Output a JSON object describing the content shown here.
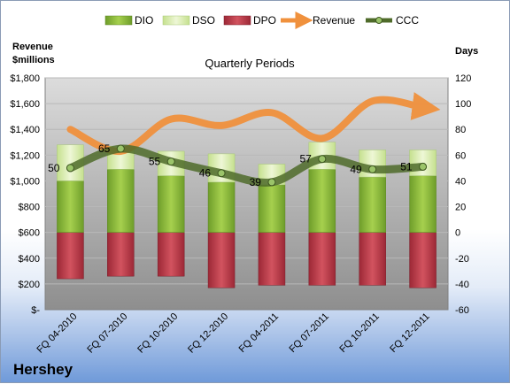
{
  "company": "Hershey",
  "chart_data": {
    "type": "bar",
    "title": "Quarterly Periods",
    "y_left_label_line1": "Revenue",
    "y_left_label_line2": "$millions",
    "y_right_label": "Days",
    "y_left_range": [
      0,
      1800
    ],
    "y_left_ticks": [
      "$-",
      "$200",
      "$400",
      "$600",
      "$800",
      "$1,000",
      "$1,200",
      "$1,400",
      "$1,600",
      "$1,800"
    ],
    "y_right_range": [
      -60,
      120
    ],
    "y_right_ticks": [
      "-60",
      "-40",
      "-20",
      "0",
      "20",
      "40",
      "60",
      "80",
      "100",
      "120"
    ],
    "categories": [
      "FQ 04-2010",
      "FQ 07-2010",
      "FQ 10-2010",
      "FQ 12-2010",
      "FQ 04-2011",
      "FQ 07-2011",
      "FQ 10-2011",
      "FQ 12-2011"
    ],
    "legend": [
      "DIO",
      "DSO",
      "DPO",
      "Revenue",
      "CCC"
    ],
    "legend_position": "top",
    "grid": true,
    "series": [
      {
        "name": "DIO",
        "axis": "right",
        "values": [
          40,
          49,
          44,
          39,
          37,
          49,
          43,
          44
        ]
      },
      {
        "name": "DSO",
        "axis": "right",
        "values": [
          28,
          18,
          19,
          22,
          16,
          21,
          21,
          20
        ]
      },
      {
        "name": "DPO",
        "axis": "right",
        "values": [
          -36,
          -34,
          -34,
          -43,
          -41,
          -41,
          -41,
          -43
        ]
      },
      {
        "name": "Revenue",
        "axis": "left",
        "values": [
          1400,
          1230,
          1480,
          1430,
          1530,
          1330,
          1620,
          1570
        ]
      },
      {
        "name": "CCC",
        "axis": "right",
        "values": [
          50,
          65,
          55,
          46,
          39,
          57,
          49,
          51
        ]
      }
    ],
    "ccc_labels": [
      "50",
      "65",
      "55",
      "46",
      "39",
      "57",
      "49",
      "51"
    ],
    "colors": {
      "DIO": "#8cbd3c",
      "DSO": "#d9ecad",
      "DPO": "#c1394a",
      "Revenue": "#f0913d",
      "CCC": "#4f6b2a",
      "plot_bg": "#a6a6a6"
    }
  }
}
